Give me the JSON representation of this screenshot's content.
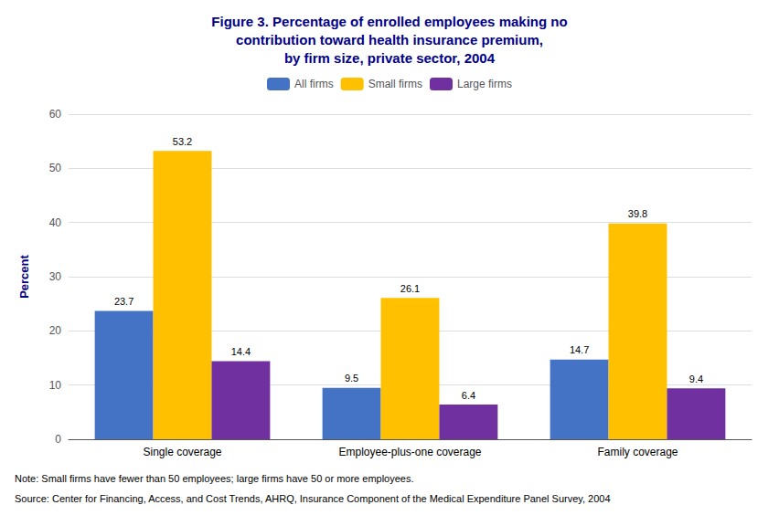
{
  "chart_data": {
    "type": "bar",
    "title": "Figure 3. Percentage of enrolled employees making no\ncontribution toward health insurance premium,\nby firm size, private sector, 2004",
    "categories": [
      "Single coverage",
      "Employee-plus-one coverage",
      "Family coverage"
    ],
    "series": [
      {
        "name": "All firms",
        "color": "#4472C4",
        "values": [
          23.7,
          9.5,
          14.7
        ]
      },
      {
        "name": "Small firms",
        "color": "#FFC000",
        "values": [
          53.2,
          26.1,
          39.8
        ]
      },
      {
        "name": "Large firms",
        "color": "#7030A0",
        "values": [
          14.4,
          6.4,
          9.4
        ]
      }
    ],
    "ylabel": "Percent",
    "ylim": [
      0,
      60
    ],
    "yticks": [
      0,
      10,
      20,
      30,
      40,
      50,
      60
    ],
    "grid": true,
    "legend": "top",
    "data_labels": true,
    "annotations": [
      "Note: Small firms have fewer than 50 employees; large firms have 50 or more employees.",
      "Source: Center for Financing, Access, and Cost Trends, AHRQ, Insurance Component of the Medical Expenditure Panel Survey, 2004"
    ]
  }
}
